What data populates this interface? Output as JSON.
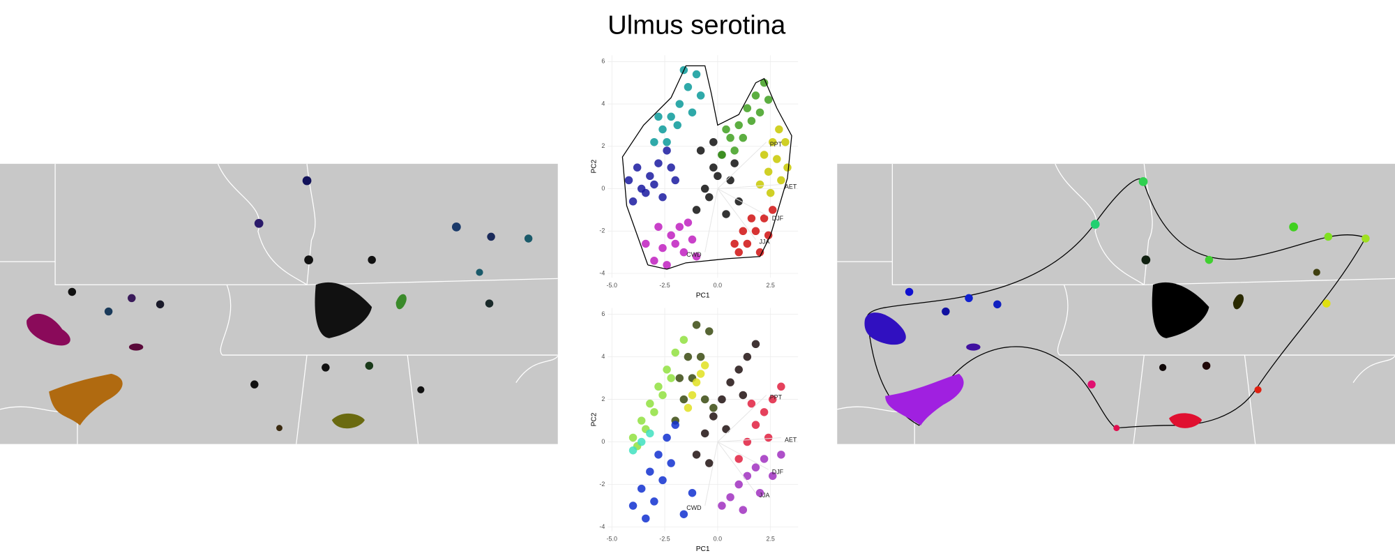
{
  "title": "Ulmus serotina",
  "chart_data": [
    {
      "type": "scatter",
      "xlabel": "PC1",
      "ylabel": "PC2",
      "xlim": [
        -5.2,
        3.8
      ],
      "ylim": [
        -4.2,
        6.3
      ],
      "xticks": [
        {
          "value": -5,
          "label": "-5.0"
        },
        {
          "value": -2.5,
          "label": "-2.5"
        },
        {
          "value": 0,
          "label": "0.0"
        },
        {
          "value": 2.5,
          "label": "2.5"
        }
      ],
      "yticks": [
        -4,
        -2,
        0,
        2,
        4,
        6
      ],
      "grid": true,
      "hull": {
        "x": [
          -3.3,
          -4.3,
          -4.5,
          -3.5,
          -2.2,
          -1.5,
          -0.6,
          -0.3,
          0,
          1,
          1.8,
          2.2,
          2.8,
          3.5,
          3.3,
          2.5,
          2.0,
          0.5,
          -1.5,
          -2.4,
          -3.3
        ],
        "y": [
          -3.6,
          -0.8,
          1.5,
          3,
          4.3,
          5.8,
          5.8,
          4.5,
          3,
          3.5,
          5.0,
          5.2,
          3.8,
          2.5,
          0.5,
          -2.2,
          -3.2,
          -3.3,
          -3.5,
          -3.8,
          -3.6
        ]
      },
      "series": [
        {
          "color": "#0a9a9a",
          "x": [
            -3,
            -2.6,
            -2.2,
            -1.8,
            -1.4,
            -1,
            -2.4,
            -1.9,
            -1.2,
            -0.8,
            -1.6,
            -2.8
          ],
          "values": [
            2.2,
            2.8,
            3.4,
            4,
            4.8,
            5.4,
            2.2,
            3,
            3.6,
            4.4,
            5.6,
            3.4
          ]
        },
        {
          "color": "#1a1aa0",
          "x": [
            -4,
            -3.6,
            -3.2,
            -2.8,
            -2.4,
            -2,
            -3.8,
            -3.4,
            -3,
            -2.6,
            -2.2,
            -4.2
          ],
          "values": [
            -0.6,
            0,
            0.6,
            1.2,
            1.8,
            0.4,
            1,
            -0.2,
            0.2,
            -0.4,
            1,
            0.4
          ]
        },
        {
          "color": "#c020c0",
          "x": [
            -3,
            -2.6,
            -2.2,
            -1.8,
            -1.4,
            -1,
            -2.8,
            -2.4,
            -2,
            -1.6,
            -1.2,
            -3.4
          ],
          "values": [
            -3.4,
            -2.8,
            -2.2,
            -1.8,
            -1.6,
            -3.2,
            -1.8,
            -3.6,
            -2.6,
            -3,
            -2.4,
            -2.6
          ]
        },
        {
          "color": "#111111",
          "x": [
            -1,
            -0.6,
            -0.2,
            0.2,
            0.6,
            1,
            -0.8,
            -0.4,
            0,
            0.4,
            0.8,
            -0.2
          ],
          "values": [
            -1,
            0,
            1,
            1.6,
            0.4,
            -0.6,
            1.8,
            -0.4,
            0.6,
            -1.2,
            1.2,
            2.2
          ]
        },
        {
          "color": "#40a020",
          "x": [
            0.2,
            0.6,
            1,
            1.4,
            1.8,
            2.2,
            0.4,
            0.8,
            1.2,
            1.6,
            2,
            2.4
          ],
          "values": [
            1.6,
            2.4,
            3,
            3.8,
            4.4,
            5,
            2.8,
            1.8,
            2.4,
            3.2,
            3.6,
            4.2
          ]
        },
        {
          "color": "#c8c800",
          "x": [
            2,
            2.4,
            2.8,
            3.2,
            2.2,
            2.6,
            3,
            3.3,
            2.5,
            2.9
          ],
          "values": [
            0.2,
            0.8,
            1.4,
            2.2,
            1.6,
            2.2,
            0.4,
            1,
            -0.2,
            2.8
          ]
        },
        {
          "color": "#d01010",
          "x": [
            1,
            1.4,
            1.8,
            2.2,
            2.6,
            1.2,
            1.6,
            2,
            2.4,
            0.8
          ],
          "values": [
            -3,
            -2.6,
            -2,
            -1.4,
            -1,
            -2,
            -1.4,
            -3,
            -2.2,
            -2.6
          ]
        }
      ],
      "vectors": {
        "labels": [
          "PPT",
          "AET",
          "DJF",
          "JJA",
          "CWD"
        ],
        "x": [
          2.3,
          3.0,
          2.4,
          1.8,
          -0.6
        ],
        "y": [
          2.2,
          0.2,
          -1.3,
          -2.4,
          -3.0
        ]
      }
    },
    {
      "type": "scatter",
      "xlabel": "PC1",
      "ylabel": "PC2",
      "xlim": [
        -5.2,
        3.8
      ],
      "ylim": [
        -4.2,
        6.3
      ],
      "xticks": [
        {
          "value": -5,
          "label": "-5.0"
        },
        {
          "value": -2.5,
          "label": "-2.5"
        },
        {
          "value": 0,
          "label": "0.0"
        },
        {
          "value": 2.5,
          "label": "2.5"
        }
      ],
      "yticks": [
        -4,
        -2,
        0,
        2,
        4,
        6
      ],
      "grid": true,
      "series": [
        {
          "color": "#90e040",
          "x": [
            -4,
            -3.6,
            -3.2,
            -2.8,
            -2.4,
            -2,
            -1.6,
            -3.4,
            -3,
            -2.6,
            -2.2,
            -3.8
          ],
          "values": [
            0.2,
            1,
            1.8,
            2.6,
            3.4,
            4.2,
            4.8,
            0.6,
            1.4,
            2.2,
            3,
            -0.2
          ]
        },
        {
          "color": "#3a4a10",
          "x": [
            -2,
            -1.6,
            -1.2,
            -0.8,
            -0.4,
            -1.8,
            -1.4,
            -1,
            -0.6,
            -0.2
          ],
          "values": [
            1,
            2,
            3,
            4,
            5.2,
            3,
            4,
            5.5,
            2,
            1.6
          ]
        },
        {
          "color": "#1030d0",
          "x": [
            -4,
            -3.6,
            -3.2,
            -2.8,
            -2.4,
            -2,
            -1.6,
            -1.2,
            -3.4,
            -3,
            -2.6,
            -2.2
          ],
          "values": [
            -3,
            -2.2,
            -1.4,
            -0.6,
            0.2,
            0.8,
            -3.4,
            -2.4,
            -3.6,
            -2.8,
            -1.8,
            -1
          ]
        },
        {
          "color": "#201010",
          "x": [
            -1,
            -0.6,
            -0.2,
            0.2,
            0.6,
            1,
            1.4,
            1.8,
            -0.4,
            0.4,
            1.2
          ],
          "values": [
            -0.6,
            0.4,
            1.2,
            2,
            2.8,
            3.4,
            4,
            4.6,
            -1,
            0.6,
            2.2
          ]
        },
        {
          "color": "#e02040",
          "x": [
            1,
            1.4,
            1.8,
            2.2,
            2.6,
            3,
            1.6,
            2.4
          ],
          "values": [
            -0.8,
            0,
            0.8,
            1.4,
            2,
            2.6,
            1.8,
            0.2
          ]
        },
        {
          "color": "#a030c0",
          "x": [
            0.2,
            0.6,
            1,
            1.4,
            1.8,
            2.2,
            2.6,
            3,
            1.2,
            2
          ],
          "values": [
            -3,
            -2.6,
            -2,
            -1.6,
            -1.2,
            -0.8,
            -1.6,
            -0.6,
            -3.2,
            -2.4
          ]
        },
        {
          "color": "#e0e020",
          "x": [
            -1.4,
            -1.2,
            -1,
            -0.8,
            -0.6
          ],
          "values": [
            1.6,
            2.2,
            2.8,
            3.2,
            3.6
          ]
        },
        {
          "color": "#40e0c0",
          "x": [
            -4,
            -3.6,
            -3.2
          ],
          "values": [
            -0.4,
            0,
            0.4
          ]
        }
      ],
      "vectors": {
        "labels": [
          "PPT",
          "AET",
          "DJF",
          "JJA",
          "CWD"
        ],
        "x": [
          2.3,
          3.0,
          2.4,
          1.8,
          -0.6
        ],
        "y": [
          2.2,
          0.2,
          -1.3,
          -2.4,
          -3.0
        ]
      }
    }
  ]
}
